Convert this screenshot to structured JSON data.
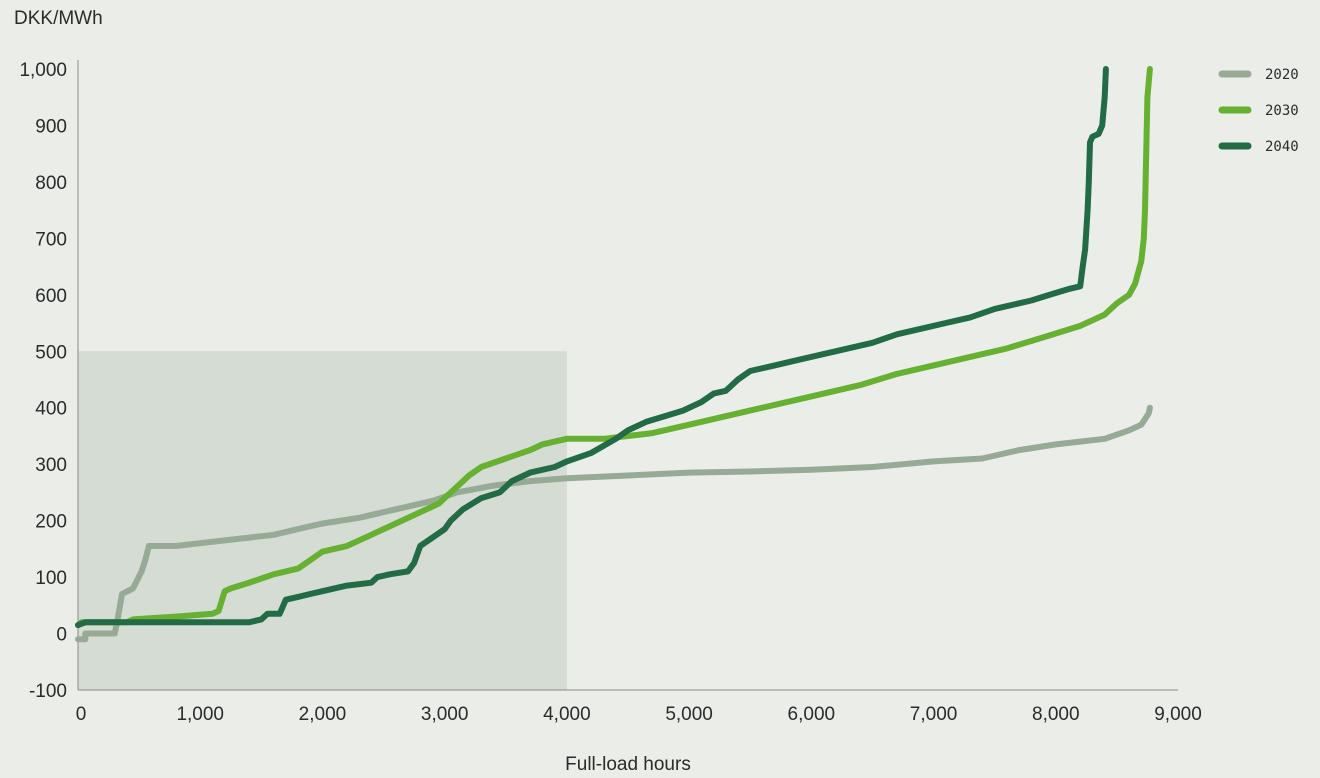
{
  "chart_data": {
    "type": "line",
    "ylabel": "DKK/MWh",
    "xlabel": "Full-load hours",
    "xlim": [
      0,
      9000
    ],
    "ylim": [
      -100,
      1000
    ],
    "xticks": [
      0,
      1000,
      2000,
      3000,
      4000,
      5000,
      6000,
      7000,
      8000,
      9000
    ],
    "xtick_labels": [
      "0",
      "1,000",
      "2,000",
      "3,000",
      "4,000",
      "5,000",
      "6,000",
      "7,000",
      "8,000",
      "9,000"
    ],
    "yticks": [
      -100,
      0,
      100,
      200,
      300,
      400,
      500,
      600,
      700,
      800,
      900,
      1000
    ],
    "ytick_labels": [
      "-100",
      "0",
      "100",
      "200",
      "300",
      "400",
      "500",
      "600",
      "700",
      "800",
      "900",
      "1,000"
    ],
    "grid": false,
    "legend_position": "top-right",
    "shaded_region": {
      "x": [
        0,
        4000
      ],
      "y": [
        -100,
        500
      ],
      "color": "#d4dcd3"
    },
    "series": [
      {
        "name": "2020",
        "color": "#96aa96",
        "points": [
          [
            0,
            -10
          ],
          [
            60,
            -10
          ],
          [
            60,
            0
          ],
          [
            300,
            0
          ],
          [
            320,
            20
          ],
          [
            360,
            70
          ],
          [
            450,
            80
          ],
          [
            520,
            110
          ],
          [
            550,
            130
          ],
          [
            580,
            155
          ],
          [
            800,
            155
          ],
          [
            1000,
            160
          ],
          [
            1200,
            165
          ],
          [
            1400,
            170
          ],
          [
            1600,
            175
          ],
          [
            1800,
            185
          ],
          [
            2000,
            195
          ],
          [
            2300,
            205
          ],
          [
            2600,
            220
          ],
          [
            2900,
            235
          ],
          [
            3100,
            250
          ],
          [
            3400,
            262
          ],
          [
            3700,
            270
          ],
          [
            4000,
            275
          ],
          [
            4500,
            280
          ],
          [
            5000,
            285
          ],
          [
            5500,
            287
          ],
          [
            6000,
            290
          ],
          [
            6500,
            295
          ],
          [
            7000,
            305
          ],
          [
            7400,
            310
          ],
          [
            7700,
            325
          ],
          [
            8000,
            335
          ],
          [
            8200,
            340
          ],
          [
            8400,
            345
          ],
          [
            8600,
            360
          ],
          [
            8700,
            370
          ],
          [
            8760,
            390
          ],
          [
            8770,
            400
          ]
        ]
      },
      {
        "name": "2030",
        "color": "#66b032",
        "points": [
          [
            0,
            15
          ],
          [
            30,
            20
          ],
          [
            400,
            20
          ],
          [
            450,
            25
          ],
          [
            800,
            30
          ],
          [
            1100,
            35
          ],
          [
            1150,
            40
          ],
          [
            1200,
            75
          ],
          [
            1250,
            80
          ],
          [
            1400,
            90
          ],
          [
            1600,
            105
          ],
          [
            1800,
            115
          ],
          [
            1900,
            130
          ],
          [
            2000,
            145
          ],
          [
            2200,
            155
          ],
          [
            2400,
            175
          ],
          [
            2600,
            195
          ],
          [
            2800,
            215
          ],
          [
            2950,
            230
          ],
          [
            3100,
            260
          ],
          [
            3200,
            280
          ],
          [
            3300,
            295
          ],
          [
            3500,
            310
          ],
          [
            3700,
            325
          ],
          [
            3800,
            335
          ],
          [
            3900,
            340
          ],
          [
            4000,
            345
          ],
          [
            4300,
            345
          ],
          [
            4500,
            350
          ],
          [
            4700,
            355
          ],
          [
            5000,
            370
          ],
          [
            5300,
            385
          ],
          [
            5600,
            400
          ],
          [
            6000,
            420
          ],
          [
            6400,
            440
          ],
          [
            6700,
            460
          ],
          [
            7000,
            475
          ],
          [
            7300,
            490
          ],
          [
            7600,
            505
          ],
          [
            7900,
            525
          ],
          [
            8200,
            545
          ],
          [
            8400,
            565
          ],
          [
            8500,
            585
          ],
          [
            8600,
            600
          ],
          [
            8650,
            620
          ],
          [
            8700,
            660
          ],
          [
            8720,
            700
          ],
          [
            8730,
            750
          ],
          [
            8740,
            850
          ],
          [
            8750,
            950
          ],
          [
            8770,
            1000
          ]
        ]
      },
      {
        "name": "2040",
        "color": "#236b45",
        "points": [
          [
            0,
            15
          ],
          [
            60,
            20
          ],
          [
            300,
            20
          ],
          [
            500,
            20
          ],
          [
            1000,
            20
          ],
          [
            1400,
            20
          ],
          [
            1500,
            25
          ],
          [
            1550,
            35
          ],
          [
            1650,
            35
          ],
          [
            1700,
            60
          ],
          [
            1800,
            65
          ],
          [
            1900,
            70
          ],
          [
            2000,
            75
          ],
          [
            2200,
            85
          ],
          [
            2400,
            90
          ],
          [
            2450,
            100
          ],
          [
            2550,
            105
          ],
          [
            2700,
            110
          ],
          [
            2750,
            125
          ],
          [
            2800,
            155
          ],
          [
            2900,
            170
          ],
          [
            3000,
            185
          ],
          [
            3050,
            200
          ],
          [
            3150,
            220
          ],
          [
            3300,
            240
          ],
          [
            3450,
            250
          ],
          [
            3550,
            270
          ],
          [
            3700,
            285
          ],
          [
            3900,
            295
          ],
          [
            4000,
            305
          ],
          [
            4200,
            320
          ],
          [
            4400,
            345
          ],
          [
            4500,
            360
          ],
          [
            4650,
            375
          ],
          [
            4800,
            385
          ],
          [
            4950,
            395
          ],
          [
            5100,
            410
          ],
          [
            5200,
            425
          ],
          [
            5300,
            430
          ],
          [
            5400,
            450
          ],
          [
            5500,
            465
          ],
          [
            5700,
            475
          ],
          [
            5900,
            485
          ],
          [
            6100,
            495
          ],
          [
            6300,
            505
          ],
          [
            6500,
            515
          ],
          [
            6700,
            530
          ],
          [
            6900,
            540
          ],
          [
            7100,
            550
          ],
          [
            7300,
            560
          ],
          [
            7500,
            575
          ],
          [
            7700,
            585
          ],
          [
            7800,
            590
          ],
          [
            7950,
            600
          ],
          [
            8100,
            610
          ],
          [
            8200,
            615
          ],
          [
            8220,
            650
          ],
          [
            8240,
            680
          ],
          [
            8260,
            750
          ],
          [
            8270,
            800
          ],
          [
            8280,
            870
          ],
          [
            8300,
            880
          ],
          [
            8350,
            885
          ],
          [
            8380,
            900
          ],
          [
            8400,
            950
          ],
          [
            8410,
            1000
          ]
        ]
      }
    ]
  }
}
